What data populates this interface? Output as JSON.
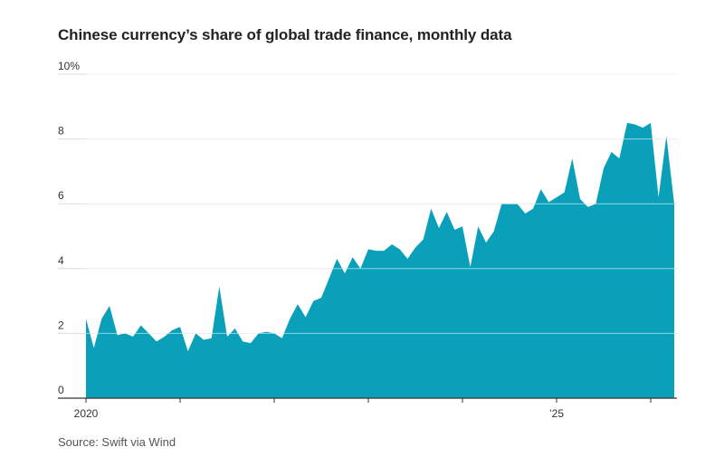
{
  "title": "Chinese currency’s share of global trade finance, monthly data",
  "source": "Source: Swift via Wind",
  "colors": {
    "area": "#0aa0ba",
    "grid": "#dddddd",
    "axis": "#333333"
  },
  "chart_data": {
    "type": "area",
    "title": "Chinese currency’s share of global trade finance, monthly data",
    "xlabel": "",
    "ylabel": "",
    "y_ticks": [
      {
        "value": 0,
        "label": "0"
      },
      {
        "value": 2,
        "label": "2"
      },
      {
        "value": 4,
        "label": "4"
      },
      {
        "value": 6,
        "label": "6"
      },
      {
        "value": 8,
        "label": "8"
      },
      {
        "value": 10,
        "label": "10%"
      }
    ],
    "x_tick_labels": [
      {
        "year": 2020,
        "label": "2020"
      },
      {
        "year": 2025,
        "label": "’25"
      }
    ],
    "x_tick_years": [
      2020,
      2021,
      2022,
      2023,
      2024,
      2025,
      2026
    ],
    "ylim": [
      0,
      10
    ],
    "grid": true,
    "legend": "none",
    "series": [
      {
        "start": "2020-01",
        "frequency": "monthly",
        "values": [
          2.45,
          1.55,
          2.45,
          2.85,
          1.95,
          2.0,
          1.9,
          2.25,
          2.0,
          1.75,
          1.9,
          2.1,
          2.2,
          1.45,
          2.0,
          1.8,
          1.85,
          3.45,
          1.9,
          2.15,
          1.75,
          1.7,
          2.0,
          2.05,
          2.0,
          1.85,
          2.45,
          2.9,
          2.5,
          3.0,
          3.1,
          3.7,
          4.3,
          3.85,
          4.35,
          4.0,
          4.6,
          4.55,
          4.55,
          4.75,
          4.6,
          4.3,
          4.65,
          4.9,
          5.85,
          5.25,
          5.75,
          5.2,
          5.3,
          4.05,
          5.3,
          4.8,
          5.15,
          6.0,
          6.0,
          6.0,
          5.7,
          5.85,
          6.45,
          6.05,
          6.2,
          6.35,
          7.4,
          6.15,
          5.9,
          6.0,
          7.1,
          7.6,
          7.4,
          8.5,
          8.45,
          8.35,
          8.5,
          6.2,
          8.1,
          6.0
        ]
      }
    ]
  }
}
